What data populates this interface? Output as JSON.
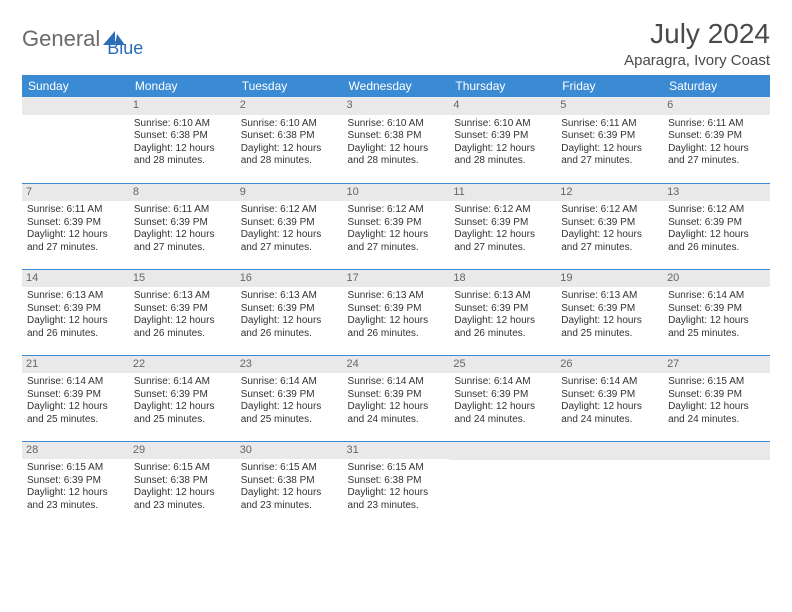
{
  "brand": {
    "part1": "General",
    "part2": "Blue"
  },
  "title": "July 2024",
  "location": "Aparagra, Ivory Coast",
  "colors": {
    "header_bg": "#3b8bd4",
    "header_text": "#ffffff",
    "daynum_bg": "#e9e9e9",
    "daynum_text": "#666666",
    "border": "#3b8bd4",
    "body_text": "#333333",
    "brand_gray": "#6a6a6a",
    "brand_blue": "#2a6fb5"
  },
  "day_headers": [
    "Sunday",
    "Monday",
    "Tuesday",
    "Wednesday",
    "Thursday",
    "Friday",
    "Saturday"
  ],
  "weeks": [
    [
      null,
      {
        "n": "1",
        "sr": "6:10 AM",
        "ss": "6:38 PM",
        "dl": "12 hours and 28 minutes."
      },
      {
        "n": "2",
        "sr": "6:10 AM",
        "ss": "6:38 PM",
        "dl": "12 hours and 28 minutes."
      },
      {
        "n": "3",
        "sr": "6:10 AM",
        "ss": "6:38 PM",
        "dl": "12 hours and 28 minutes."
      },
      {
        "n": "4",
        "sr": "6:10 AM",
        "ss": "6:39 PM",
        "dl": "12 hours and 28 minutes."
      },
      {
        "n": "5",
        "sr": "6:11 AM",
        "ss": "6:39 PM",
        "dl": "12 hours and 27 minutes."
      },
      {
        "n": "6",
        "sr": "6:11 AM",
        "ss": "6:39 PM",
        "dl": "12 hours and 27 minutes."
      }
    ],
    [
      {
        "n": "7",
        "sr": "6:11 AM",
        "ss": "6:39 PM",
        "dl": "12 hours and 27 minutes."
      },
      {
        "n": "8",
        "sr": "6:11 AM",
        "ss": "6:39 PM",
        "dl": "12 hours and 27 minutes."
      },
      {
        "n": "9",
        "sr": "6:12 AM",
        "ss": "6:39 PM",
        "dl": "12 hours and 27 minutes."
      },
      {
        "n": "10",
        "sr": "6:12 AM",
        "ss": "6:39 PM",
        "dl": "12 hours and 27 minutes."
      },
      {
        "n": "11",
        "sr": "6:12 AM",
        "ss": "6:39 PM",
        "dl": "12 hours and 27 minutes."
      },
      {
        "n": "12",
        "sr": "6:12 AM",
        "ss": "6:39 PM",
        "dl": "12 hours and 27 minutes."
      },
      {
        "n": "13",
        "sr": "6:12 AM",
        "ss": "6:39 PM",
        "dl": "12 hours and 26 minutes."
      }
    ],
    [
      {
        "n": "14",
        "sr": "6:13 AM",
        "ss": "6:39 PM",
        "dl": "12 hours and 26 minutes."
      },
      {
        "n": "15",
        "sr": "6:13 AM",
        "ss": "6:39 PM",
        "dl": "12 hours and 26 minutes."
      },
      {
        "n": "16",
        "sr": "6:13 AM",
        "ss": "6:39 PM",
        "dl": "12 hours and 26 minutes."
      },
      {
        "n": "17",
        "sr": "6:13 AM",
        "ss": "6:39 PM",
        "dl": "12 hours and 26 minutes."
      },
      {
        "n": "18",
        "sr": "6:13 AM",
        "ss": "6:39 PM",
        "dl": "12 hours and 26 minutes."
      },
      {
        "n": "19",
        "sr": "6:13 AM",
        "ss": "6:39 PM",
        "dl": "12 hours and 25 minutes."
      },
      {
        "n": "20",
        "sr": "6:14 AM",
        "ss": "6:39 PM",
        "dl": "12 hours and 25 minutes."
      }
    ],
    [
      {
        "n": "21",
        "sr": "6:14 AM",
        "ss": "6:39 PM",
        "dl": "12 hours and 25 minutes."
      },
      {
        "n": "22",
        "sr": "6:14 AM",
        "ss": "6:39 PM",
        "dl": "12 hours and 25 minutes."
      },
      {
        "n": "23",
        "sr": "6:14 AM",
        "ss": "6:39 PM",
        "dl": "12 hours and 25 minutes."
      },
      {
        "n": "24",
        "sr": "6:14 AM",
        "ss": "6:39 PM",
        "dl": "12 hours and 24 minutes."
      },
      {
        "n": "25",
        "sr": "6:14 AM",
        "ss": "6:39 PM",
        "dl": "12 hours and 24 minutes."
      },
      {
        "n": "26",
        "sr": "6:14 AM",
        "ss": "6:39 PM",
        "dl": "12 hours and 24 minutes."
      },
      {
        "n": "27",
        "sr": "6:15 AM",
        "ss": "6:39 PM",
        "dl": "12 hours and 24 minutes."
      }
    ],
    [
      {
        "n": "28",
        "sr": "6:15 AM",
        "ss": "6:39 PM",
        "dl": "12 hours and 23 minutes."
      },
      {
        "n": "29",
        "sr": "6:15 AM",
        "ss": "6:38 PM",
        "dl": "12 hours and 23 minutes."
      },
      {
        "n": "30",
        "sr": "6:15 AM",
        "ss": "6:38 PM",
        "dl": "12 hours and 23 minutes."
      },
      {
        "n": "31",
        "sr": "6:15 AM",
        "ss": "6:38 PM",
        "dl": "12 hours and 23 minutes."
      },
      null,
      null,
      null
    ]
  ],
  "labels": {
    "sunrise": "Sunrise:",
    "sunset": "Sunset:",
    "daylight": "Daylight:"
  }
}
